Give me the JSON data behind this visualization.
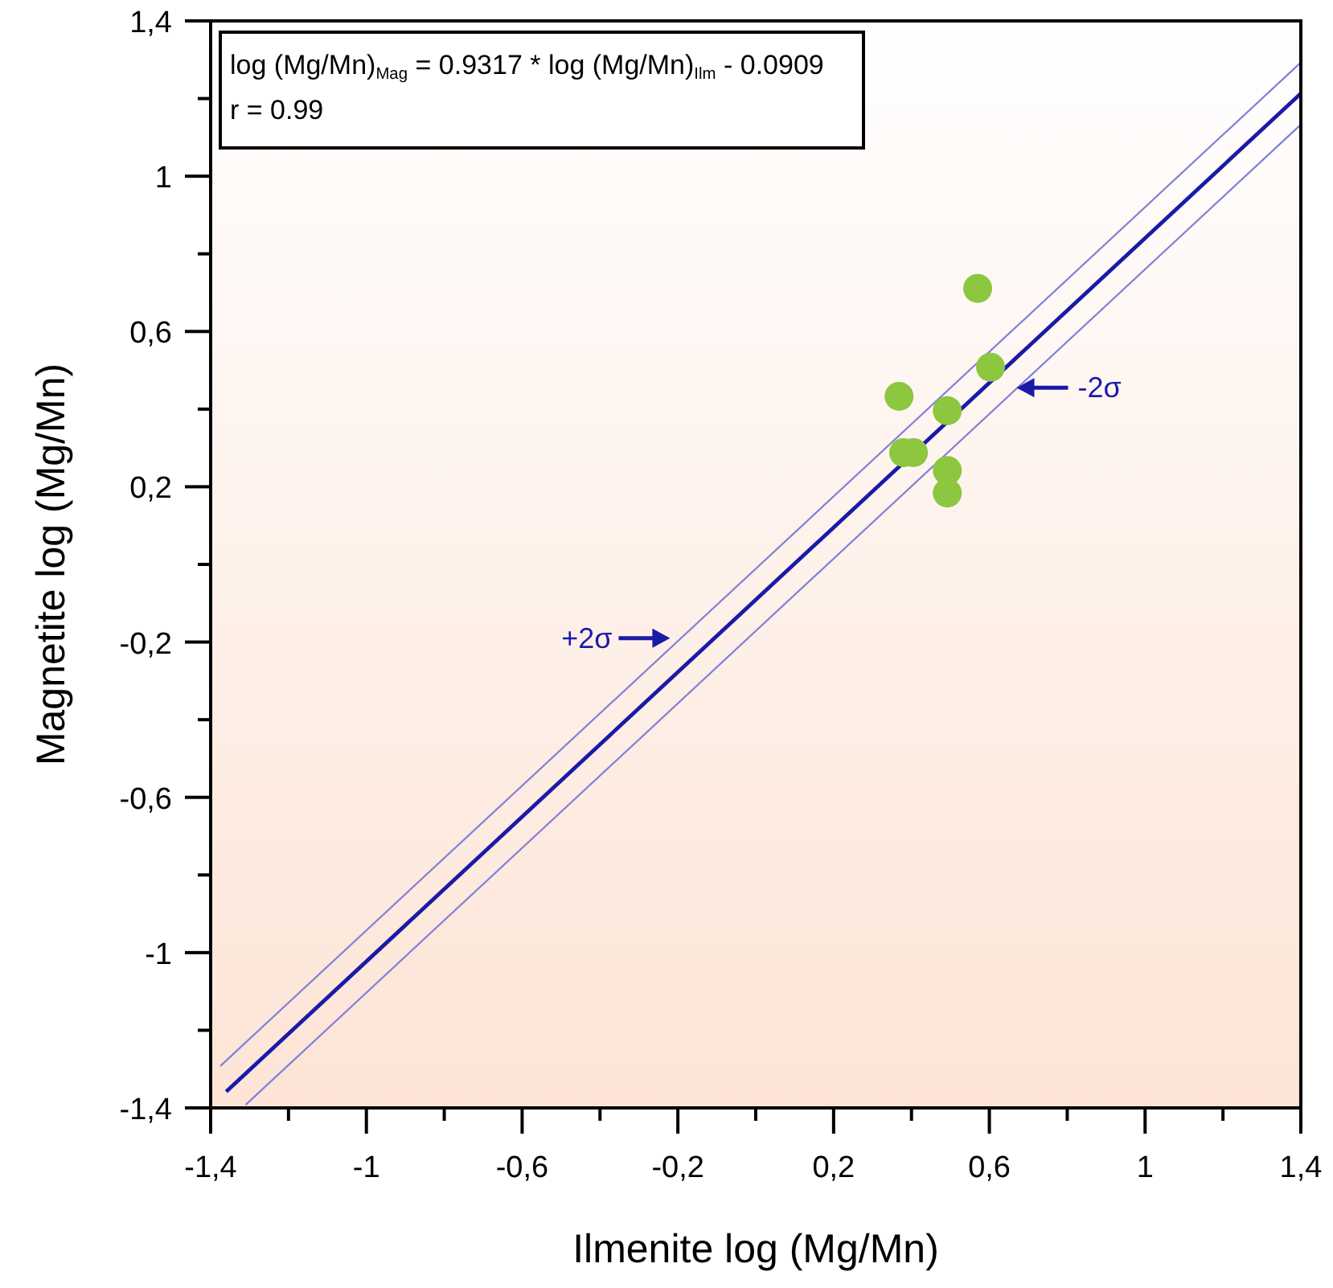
{
  "chart_data": {
    "type": "scatter",
    "xlabel": "Ilmenite log (Mg/Mn)",
    "ylabel": "Magnetite log (Mg/Mn)",
    "xlim": [
      -1.4,
      1.4
    ],
    "ylim": [
      -1.4,
      1.4
    ],
    "xticks": [
      {
        "value": -1.4,
        "label": "-1,4"
      },
      {
        "value": -1.2,
        "label": null
      },
      -1,
      {
        "value": -0.8,
        "label": null
      },
      {
        "value": -0.6,
        "label": "-0,6"
      },
      {
        "value": -0.4,
        "label": null
      },
      {
        "value": -0.2,
        "label": "-0,2"
      },
      {
        "value": 0,
        "label": null
      },
      {
        "value": 0.2,
        "label": "0,2"
      },
      {
        "value": 0.4,
        "label": null
      },
      {
        "value": 0.6,
        "label": "0,6"
      },
      {
        "value": 0.8,
        "label": null
      },
      1,
      {
        "value": 1.2,
        "label": null
      },
      {
        "value": 1.4,
        "label": "1,4"
      }
    ],
    "yticks": [
      {
        "value": -1.4,
        "label": "-1,4"
      },
      {
        "value": -1.2,
        "label": null
      },
      -1,
      {
        "value": -0.8,
        "label": null
      },
      {
        "value": -0.6,
        "label": "-0,6"
      },
      {
        "value": -0.4,
        "label": null
      },
      {
        "value": -0.2,
        "label": "-0,2"
      },
      {
        "value": 0,
        "label": null
      },
      {
        "value": 0.2,
        "label": "0,2"
      },
      {
        "value": 0.4,
        "label": null
      },
      {
        "value": 0.6,
        "label": "0,6"
      },
      {
        "value": 0.8,
        "label": null
      },
      1,
      {
        "value": 1.2,
        "label": null
      },
      {
        "value": 1.4,
        "label": "1,4"
      }
    ],
    "grid": false,
    "legend": false,
    "series": [
      {
        "type": "line",
        "color": "#8080d8",
        "marker": "none",
        "x": [
          -1.375,
          1.4
        ],
        "values": [
          -1.292,
          1.293
        ]
      },
      {
        "type": "line",
        "color": "#8080d8",
        "marker": "none",
        "x": [
          -1.31,
          1.4
        ],
        "values": [
          -1.392,
          1.133
        ]
      },
      {
        "type": "line",
        "color": "#1a1aa8",
        "marker": "none",
        "x": [
          -1.36,
          1.4
        ],
        "values": [
          -1.358,
          1.213
        ]
      },
      {
        "type": "scatter",
        "color": "#8dc63f",
        "marker": "circle",
        "x": [
          0.57,
          0.603,
          0.368,
          0.492,
          0.38,
          0.405,
          0.492,
          0.492
        ],
        "values": [
          0.711,
          0.508,
          0.433,
          0.396,
          0.288,
          0.288,
          0.242,
          0.184
        ]
      }
    ],
    "annotations": [
      "log (Mg/Mn)$_{Mag}$ = 0.9317 * log (Mg/Mn)$_{Ilm}$ - 0.0909",
      "r = 0.99",
      {
        "text": "+2σ",
        "x": -0.22,
        "y": -0.19
      },
      {
        "text": "-2σ",
        "x": 0.67,
        "y": 0.455
      }
    ]
  }
}
